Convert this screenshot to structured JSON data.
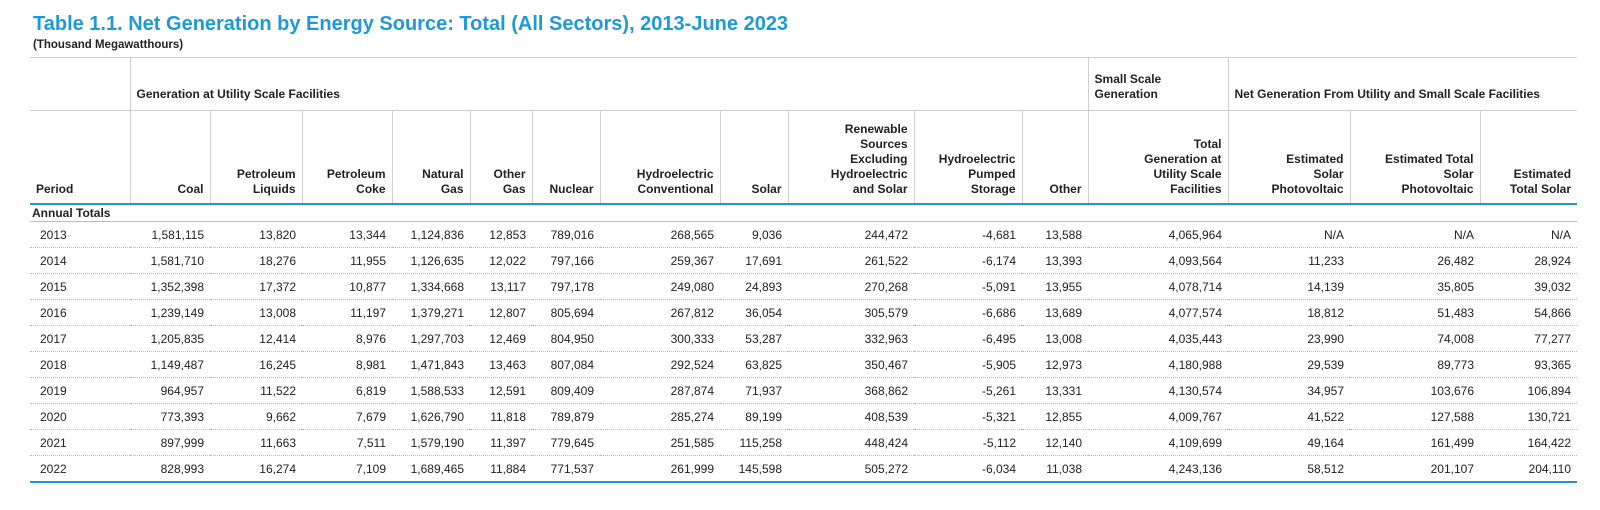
{
  "title": "Table 1.1. Net Generation by Energy Source: Total (All Sectors), 2013-June 2023",
  "subtitle": "(Thousand Megawatthours)",
  "groups": {
    "utility": "Generation at Utility Scale Facilities",
    "small": "Small Scale Generation",
    "net": "Net Generation From Utility and Small Scale Facilities"
  },
  "columns": [
    [
      "Period"
    ],
    [
      "Coal"
    ],
    [
      "Petroleum",
      "Liquids"
    ],
    [
      "Petroleum",
      "Coke"
    ],
    [
      "Natural",
      "Gas"
    ],
    [
      "Other",
      "Gas"
    ],
    [
      "Nuclear"
    ],
    [
      "Hydroelectric",
      "Conventional"
    ],
    [
      "Solar"
    ],
    [
      "Renewable",
      "Sources",
      "Excluding",
      "Hydroelectric",
      "and Solar"
    ],
    [
      "Hydroelectric",
      "Pumped",
      "Storage"
    ],
    [
      "Other"
    ],
    [
      "Total",
      "Generation at",
      "Utility Scale",
      "Facilities"
    ],
    [
      "Estimated",
      "Solar",
      "Photovoltaic"
    ],
    [
      "Estimated Total",
      "Solar",
      "Photovoltaic"
    ],
    [
      "Estimated",
      "Total Solar"
    ]
  ],
  "section_label": "Annual Totals",
  "rows": [
    [
      "2013",
      "1,581,115",
      "13,820",
      "13,344",
      "1,124,836",
      "12,853",
      "789,016",
      "268,565",
      "9,036",
      "244,472",
      "-4,681",
      "13,588",
      "4,065,964",
      "N/A",
      "N/A",
      "N/A"
    ],
    [
      "2014",
      "1,581,710",
      "18,276",
      "11,955",
      "1,126,635",
      "12,022",
      "797,166",
      "259,367",
      "17,691",
      "261,522",
      "-6,174",
      "13,393",
      "4,093,564",
      "11,233",
      "26,482",
      "28,924"
    ],
    [
      "2015",
      "1,352,398",
      "17,372",
      "10,877",
      "1,334,668",
      "13,117",
      "797,178",
      "249,080",
      "24,893",
      "270,268",
      "-5,091",
      "13,955",
      "4,078,714",
      "14,139",
      "35,805",
      "39,032"
    ],
    [
      "2016",
      "1,239,149",
      "13,008",
      "11,197",
      "1,379,271",
      "12,807",
      "805,694",
      "267,812",
      "36,054",
      "305,579",
      "-6,686",
      "13,689",
      "4,077,574",
      "18,812",
      "51,483",
      "54,866"
    ],
    [
      "2017",
      "1,205,835",
      "12,414",
      "8,976",
      "1,297,703",
      "12,469",
      "804,950",
      "300,333",
      "53,287",
      "332,963",
      "-6,495",
      "13,008",
      "4,035,443",
      "23,990",
      "74,008",
      "77,277"
    ],
    [
      "2018",
      "1,149,487",
      "16,245",
      "8,981",
      "1,471,843",
      "13,463",
      "807,084",
      "292,524",
      "63,825",
      "350,467",
      "-5,905",
      "12,973",
      "4,180,988",
      "29,539",
      "89,773",
      "93,365"
    ],
    [
      "2019",
      "964,957",
      "11,522",
      "6,819",
      "1,588,533",
      "12,591",
      "809,409",
      "287,874",
      "71,937",
      "368,862",
      "-5,261",
      "13,331",
      "4,130,574",
      "34,957",
      "103,676",
      "106,894"
    ],
    [
      "2020",
      "773,393",
      "9,662",
      "7,679",
      "1,626,790",
      "11,818",
      "789,879",
      "285,274",
      "89,199",
      "408,539",
      "-5,321",
      "12,855",
      "4,009,767",
      "41,522",
      "127,588",
      "130,721"
    ],
    [
      "2021",
      "897,999",
      "11,663",
      "7,511",
      "1,579,190",
      "11,397",
      "779,645",
      "251,585",
      "115,258",
      "448,424",
      "-5,112",
      "12,140",
      "4,109,699",
      "49,164",
      "161,499",
      "164,422"
    ],
    [
      "2022",
      "828,993",
      "16,274",
      "7,109",
      "1,689,465",
      "11,884",
      "771,537",
      "261,999",
      "145,598",
      "505,272",
      "-6,034",
      "11,038",
      "4,243,136",
      "58,512",
      "201,107",
      "204,110"
    ]
  ]
}
